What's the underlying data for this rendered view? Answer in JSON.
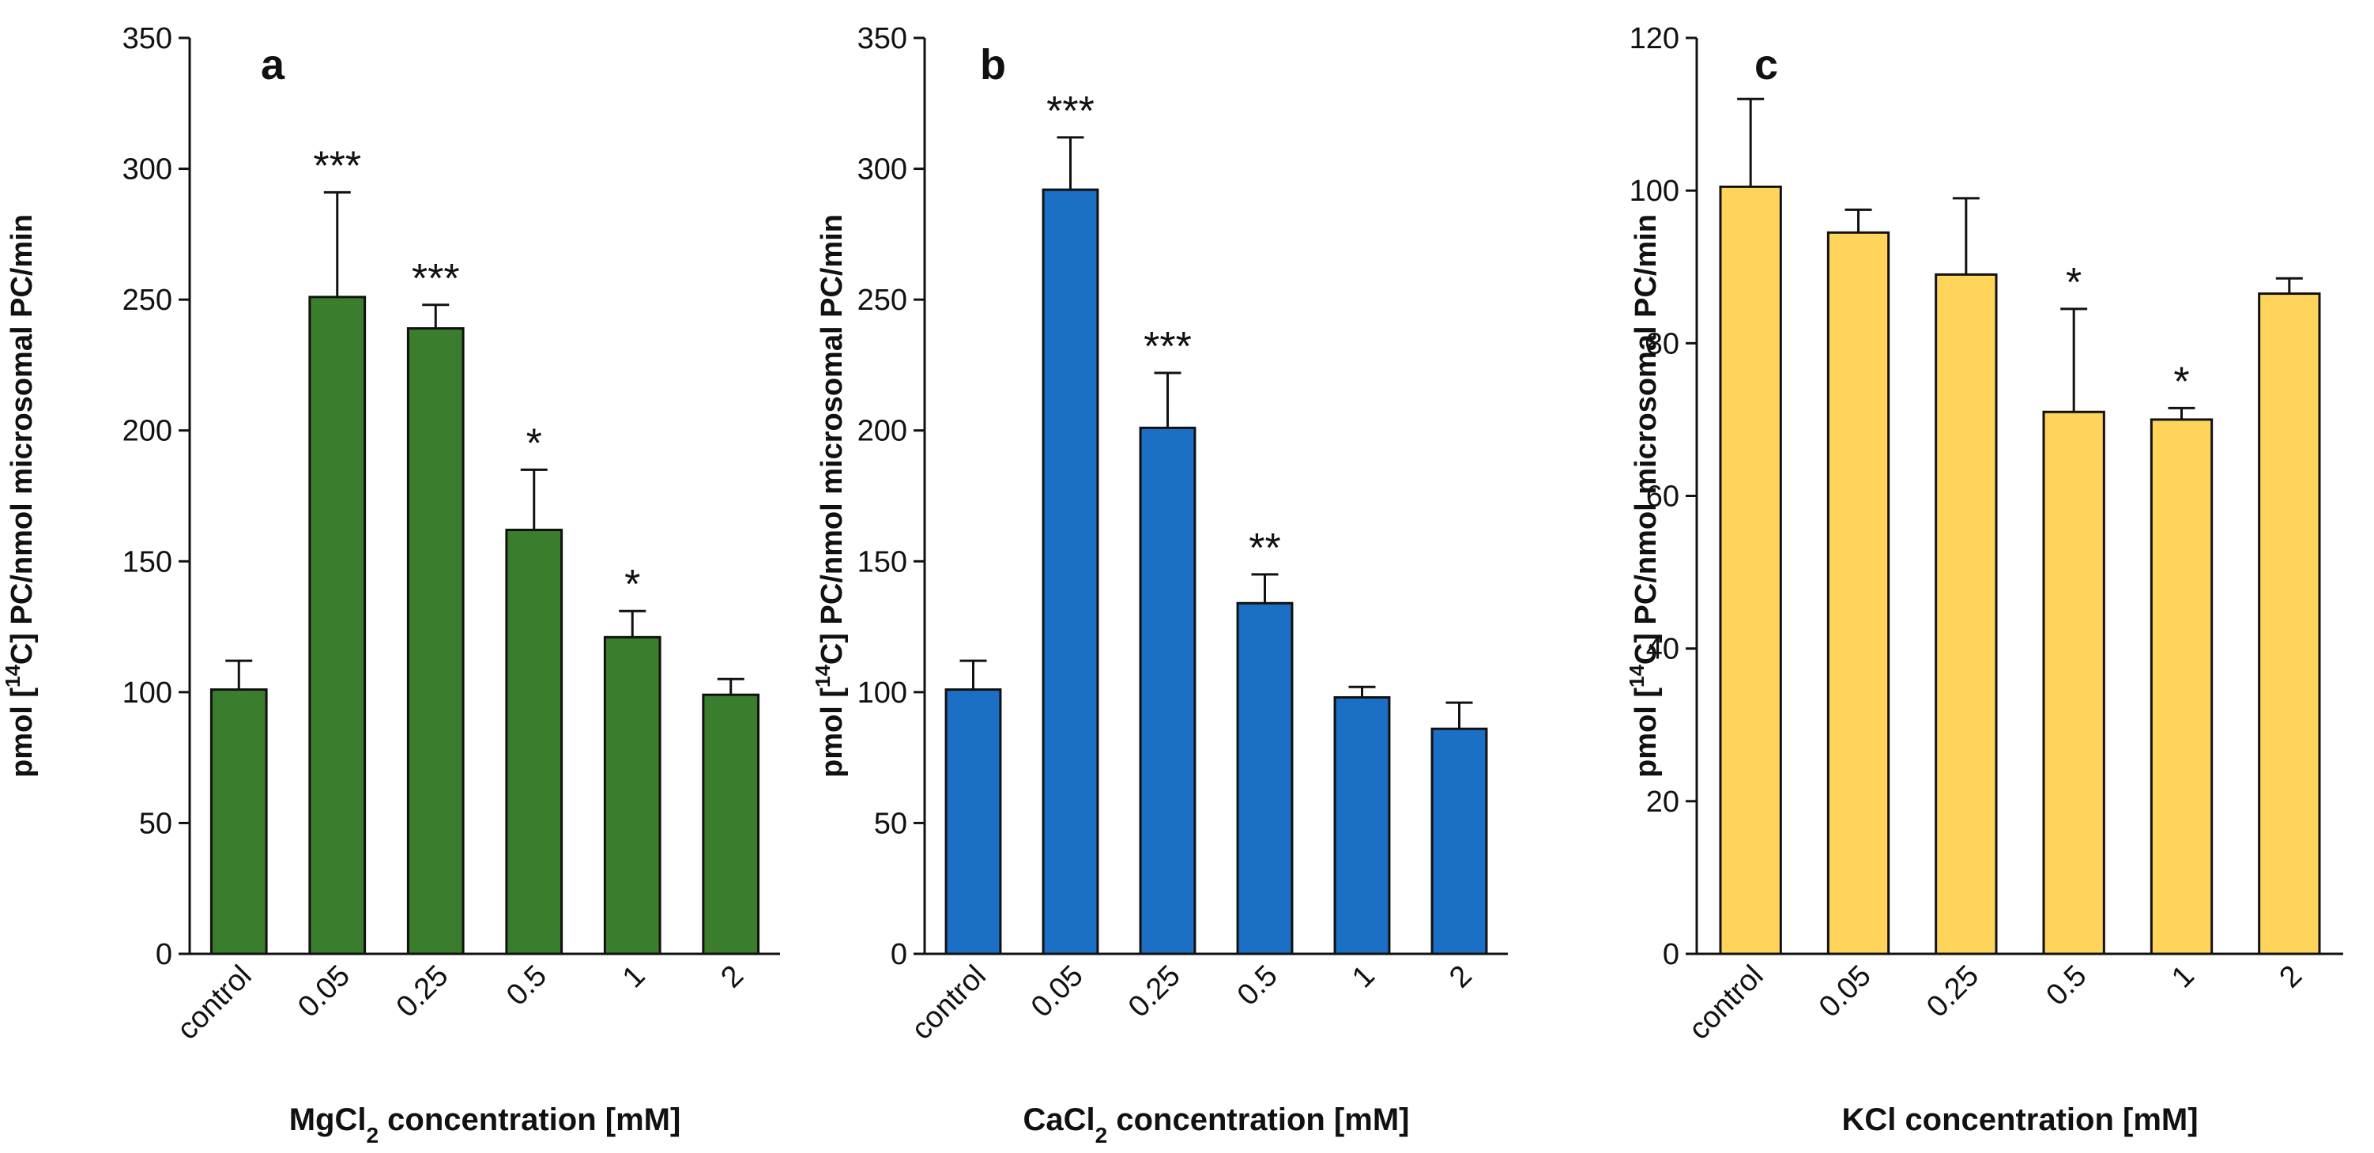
{
  "chart_data": [
    {
      "type": "bar",
      "panel_label": "a",
      "title": "",
      "categories": [
        "control",
        "0.05",
        "0.25",
        "0.5",
        "1",
        "2"
      ],
      "values": [
        101,
        251,
        239,
        162,
        121,
        99
      ],
      "errors": [
        11,
        40,
        9,
        23,
        10,
        6
      ],
      "significance": [
        "",
        "***",
        "***",
        "*",
        "*",
        ""
      ],
      "ylabel": {
        "pre": "pmol [",
        "sup": "14",
        "post": "C] PC/nmol microsomal PC/min"
      },
      "xlabel": {
        "pre": "MgCl",
        "sub": "2",
        "post": " concentration [mM]"
      },
      "ylim": [
        0,
        350
      ],
      "yticks": [
        0,
        50,
        100,
        150,
        200,
        250,
        300,
        350
      ],
      "color": "#3a7d2c",
      "grid": false
    },
    {
      "type": "bar",
      "panel_label": "b",
      "title": "",
      "categories": [
        "control",
        "0.05",
        "0.25",
        "0.5",
        "1",
        "2"
      ],
      "values": [
        101,
        292,
        201,
        134,
        98,
        86
      ],
      "errors": [
        11,
        20,
        21,
        11,
        4,
        10
      ],
      "significance": [
        "",
        "***",
        "***",
        "**",
        "",
        ""
      ],
      "ylabel": {
        "pre": "pmol [",
        "sup": "14",
        "post": "C] PC/nmol microsomal PC/min"
      },
      "xlabel": {
        "pre": "CaCl",
        "sub": "2",
        "post": " concentration [mM]"
      },
      "ylim": [
        0,
        350
      ],
      "yticks": [
        0,
        50,
        100,
        150,
        200,
        250,
        300,
        350
      ],
      "color": "#1b6fc4",
      "grid": false
    },
    {
      "type": "bar",
      "panel_label": "c",
      "title": "",
      "categories": [
        "control",
        "0.05",
        "0.25",
        "0.5",
        "1",
        "2"
      ],
      "values": [
        100.5,
        94.5,
        89,
        71,
        70,
        86.5
      ],
      "errors": [
        11.5,
        3,
        10,
        13.5,
        1.5,
        2
      ],
      "significance": [
        "",
        "",
        "",
        "*",
        "*",
        ""
      ],
      "ylabel": {
        "pre": "pmol [",
        "sup": "14",
        "post": "C] PC/nmol microsomal PC/min"
      },
      "xlabel": {
        "pre": "KCl concentration [mM]",
        "sub": "",
        "post": ""
      },
      "ylim": [
        0,
        120
      ],
      "yticks": [
        0,
        20,
        40,
        60,
        80,
        100,
        120
      ],
      "color": "#ffd45a",
      "grid": false
    }
  ]
}
